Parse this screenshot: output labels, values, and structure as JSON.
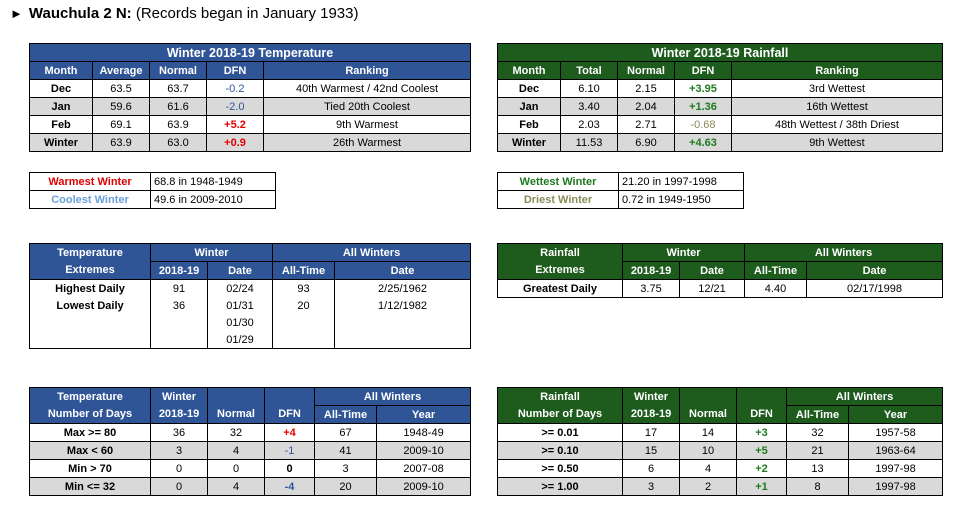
{
  "title": {
    "station": "Wauchula 2 N:",
    "note": "(Records began in January 1933)"
  },
  "temp": {
    "title": "Winter 2018-19 Temperature",
    "headers": [
      "Month",
      "Average",
      "Normal",
      "DFN",
      "Ranking"
    ],
    "rows": [
      {
        "month": "Dec",
        "avg": "63.5",
        "normal": "63.7",
        "dfn": "-0.2",
        "rank": "40th Warmest / 42nd Coolest"
      },
      {
        "month": "Jan",
        "avg": "59.6",
        "normal": "61.6",
        "dfn": "-2.0",
        "rank": "Tied 20th Coolest"
      },
      {
        "month": "Feb",
        "avg": "69.1",
        "normal": "63.9",
        "dfn": "+5.2",
        "rank": "9th Warmest"
      },
      {
        "month": "Winter",
        "avg": "63.9",
        "normal": "63.0",
        "dfn": "+0.9",
        "rank": "26th Warmest"
      }
    ]
  },
  "rain": {
    "title": "Winter 2018-19 Rainfall",
    "headers": [
      "Month",
      "Total",
      "Normal",
      "DFN",
      "Ranking"
    ],
    "rows": [
      {
        "month": "Dec",
        "total": "6.10",
        "normal": "2.15",
        "dfn": "+3.95",
        "rank": "3rd Wettest"
      },
      {
        "month": "Jan",
        "total": "3.40",
        "normal": "2.04",
        "dfn": "+1.36",
        "rank": "16th Wettest"
      },
      {
        "month": "Feb",
        "total": "2.03",
        "normal": "2.71",
        "dfn": "-0.68",
        "rank": "48th Wettest / 38th Driest"
      },
      {
        "month": "Winter",
        "total": "11.53",
        "normal": "6.90",
        "dfn": "+4.63",
        "rank": "9th Wettest"
      }
    ]
  },
  "temp_records": [
    {
      "label": "Warmest Winter",
      "value": "68.8 in 1948-1949"
    },
    {
      "label": "Coolest Winter",
      "value": "49.6 in 2009-2010"
    }
  ],
  "rain_records": [
    {
      "label": "Wettest Winter",
      "value": "21.20  in 1997-1998"
    },
    {
      "label": "Driest Winter",
      "value": "0.72 in 1949-1950"
    }
  ],
  "temp_ext": {
    "h1": "Temperature",
    "h2": "Extremes",
    "winter": "Winter",
    "all_winters": "All Winters",
    "sub": [
      "2018-19",
      "Date",
      "All-Time",
      "Date"
    ],
    "highest": {
      "label": "Highest Daily",
      "val": "91",
      "date": "02/24",
      "all": "93",
      "all_date": "2/25/1962"
    },
    "lowest": {
      "label": "Lowest Daily",
      "val": "36",
      "dates": [
        "01/31",
        "01/30",
        "01/29"
      ],
      "all": "20",
      "all_date": "1/12/1982"
    }
  },
  "rain_ext": {
    "h1": "Rainfall",
    "h2": "Extremes",
    "winter": "Winter",
    "all_winters": "All Winters",
    "sub": [
      "2018-19",
      "Date",
      "All-Time",
      "Date"
    ],
    "greatest": {
      "label": "Greatest Daily",
      "val": "3.75",
      "date": "12/21",
      "all": "4.40",
      "all_date": "02/17/1998"
    }
  },
  "temp_days": {
    "h1": "Temperature",
    "h2": "Number of Days",
    "winter": "Winter",
    "all_winters": "All Winters",
    "sub": [
      "2018-19",
      "Normal",
      "DFN",
      "All-Time",
      "Year"
    ],
    "rows": [
      {
        "label": "Max >= 80",
        "val": "36",
        "normal": "32",
        "dfn": "+4",
        "all": "67",
        "year": "1948-49"
      },
      {
        "label": "Max < 60",
        "val": "3",
        "normal": "4",
        "dfn": "-1",
        "all": "41",
        "year": "2009-10"
      },
      {
        "label": "Min > 70",
        "val": "0",
        "normal": "0",
        "dfn": "0",
        "all": "3",
        "year": "2007-08"
      },
      {
        "label": "Min <= 32",
        "val": "0",
        "normal": "4",
        "dfn": "-4",
        "all": "20",
        "year": "2009-10"
      }
    ]
  },
  "rain_days": {
    "h1": "Rainfall",
    "h2": "Number of Days",
    "winter": "Winter",
    "all_winters": "All Winters",
    "sub": [
      "2018-19",
      "Normal",
      "DFN",
      "All-Time",
      "Year"
    ],
    "rows": [
      {
        "label": ">= 0.01",
        "val": "17",
        "normal": "14",
        "dfn": "+3",
        "all": "32",
        "year": "1957-58"
      },
      {
        "label": ">= 0.10",
        "val": "15",
        "normal": "10",
        "dfn": "+5",
        "all": "21",
        "year": "1963-64"
      },
      {
        "label": ">= 0.50",
        "val": "6",
        "normal": "4",
        "dfn": "+2",
        "all": "13",
        "year": "1997-98"
      },
      {
        "label": ">= 1.00",
        "val": "3",
        "normal": "2",
        "dfn": "+1",
        "all": "8",
        "year": "1997-98"
      }
    ]
  },
  "colors": {
    "blue_header": "#2f5597",
    "green_header": "#1e5c1e",
    "row_gray": "#d9d9d9",
    "warm": "#e00000",
    "cool": "#6a9fd8"
  }
}
